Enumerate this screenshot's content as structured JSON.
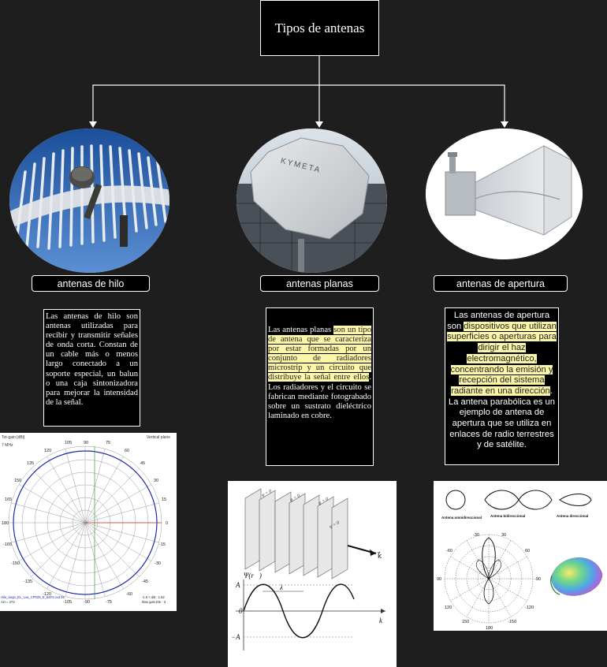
{
  "root": {
    "title": "Tipos de antenas"
  },
  "branches": [
    {
      "label": "antenas de hilo",
      "description": "Las antenas de hilo son antenas utilizadas para recibir y transmitir señales de onda corta. Constan de un cable más o menos largo conectado a un soporte especial, un balun o una caja sintonizadora para mejorar la intensidad de la señal.",
      "figure": {
        "title_left": "Tot-gain [dBi]",
        "title_right": "Vertical plane",
        "freq": "7 MHz",
        "ticks_top": [
          "105",
          "90",
          "75"
        ],
        "angles": [
          "135",
          "120",
          "60",
          "45",
          "30",
          "15",
          "150",
          "165",
          "180",
          "-165",
          "-150",
          "-135",
          "-120",
          "-105",
          "-90",
          "-75",
          "-60",
          "-45",
          "-30",
          "-15",
          "0"
        ],
        "footer_left": "Hilo_largo_EL_Lva_CP025_E_64FS.out 05",
        "footer_left2": "Azi = 273",
        "footer_right": "-1.5 < dB : 1.52",
        "footer_right2": "Max gain Ele : 3"
      }
    },
    {
      "label": "antenas planas",
      "description_parts": [
        {
          "text": "Las antenas planas ",
          "hl": false
        },
        {
          "text": "son un tipo de antena que se caracteriza por estar formadas por un conjunto de radiadores microstrip y un circuito que distribuye la señal entre ellos",
          "hl": true
        },
        {
          "text": ". Los radiadores y el circuito se fabrican mediante fotograbado sobre un sustrato dieléctrico laminado en cobre.",
          "hl": false
        }
      ],
      "photo_text": "KYMETA",
      "figure": {
        "psi_label": "Ψ(r⃗)",
        "a_plus": "A",
        "a_minus": "−A",
        "zero": "0",
        "lambda": "λ",
        "k_label": "k⃗",
        "phase_labels": [
          "φ = 0",
          "φ = 0",
          "φ = 0",
          "φ = 0"
        ]
      }
    },
    {
      "label": "antenas de apertura",
      "description_parts": [
        {
          "text": "Las antenas de apertura son ",
          "hl": false
        },
        {
          "text": "dispositivos que utilizan superficies o aperturas para dirigir el haz electromagnético, concentrando la emisión y recepción del sistema radiante en una dirección",
          "hl": true
        },
        {
          "text": ". La antena parabólica es un ejemplo de antena de apertura que se utiliza en enlaces de radio terrestres y de satélite.",
          "hl": false
        }
      ],
      "figure": {
        "types": [
          "Antena omnidireccional",
          "Antena bidireccional",
          "Antena direccional"
        ],
        "polar_labels": [
          "-30",
          "30",
          "-60",
          "60",
          "90",
          "-90",
          "120",
          "-120",
          "150",
          "-150",
          "180",
          "0"
        ]
      }
    }
  ],
  "colors": {
    "background": "#1e1e1e",
    "box": "#000000",
    "line": "#ffffff",
    "highlight": "#fbf6a8"
  }
}
